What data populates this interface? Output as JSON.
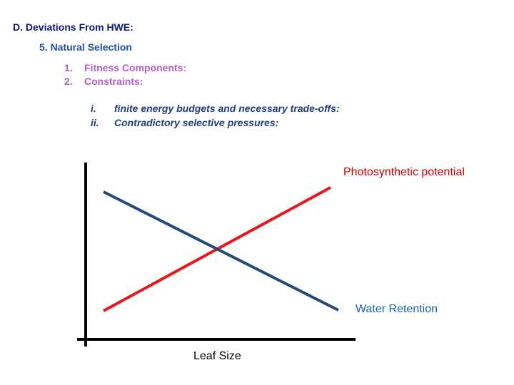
{
  "heading": "D. Deviations From HWE:",
  "subheading": "5. Natural Selection",
  "numbered": [
    {
      "num": "1.",
      "text": "Fitness Components:"
    },
    {
      "num": "2.",
      "text": "Constraints:"
    }
  ],
  "roman": [
    {
      "num": "i.",
      "text": "finite energy budgets and necessary trade-offs:"
    },
    {
      "num": "ii.",
      "text": "Contradictory selective pressures:"
    }
  ],
  "diagram": {
    "photosynthetic_label": "Photosynthetic potential",
    "water_label": "Water Retention",
    "x_axis_label": "Leaf Size",
    "colors": {
      "photosynthetic": "#e8171b",
      "water": "#24497a",
      "axis": "#000000"
    }
  }
}
